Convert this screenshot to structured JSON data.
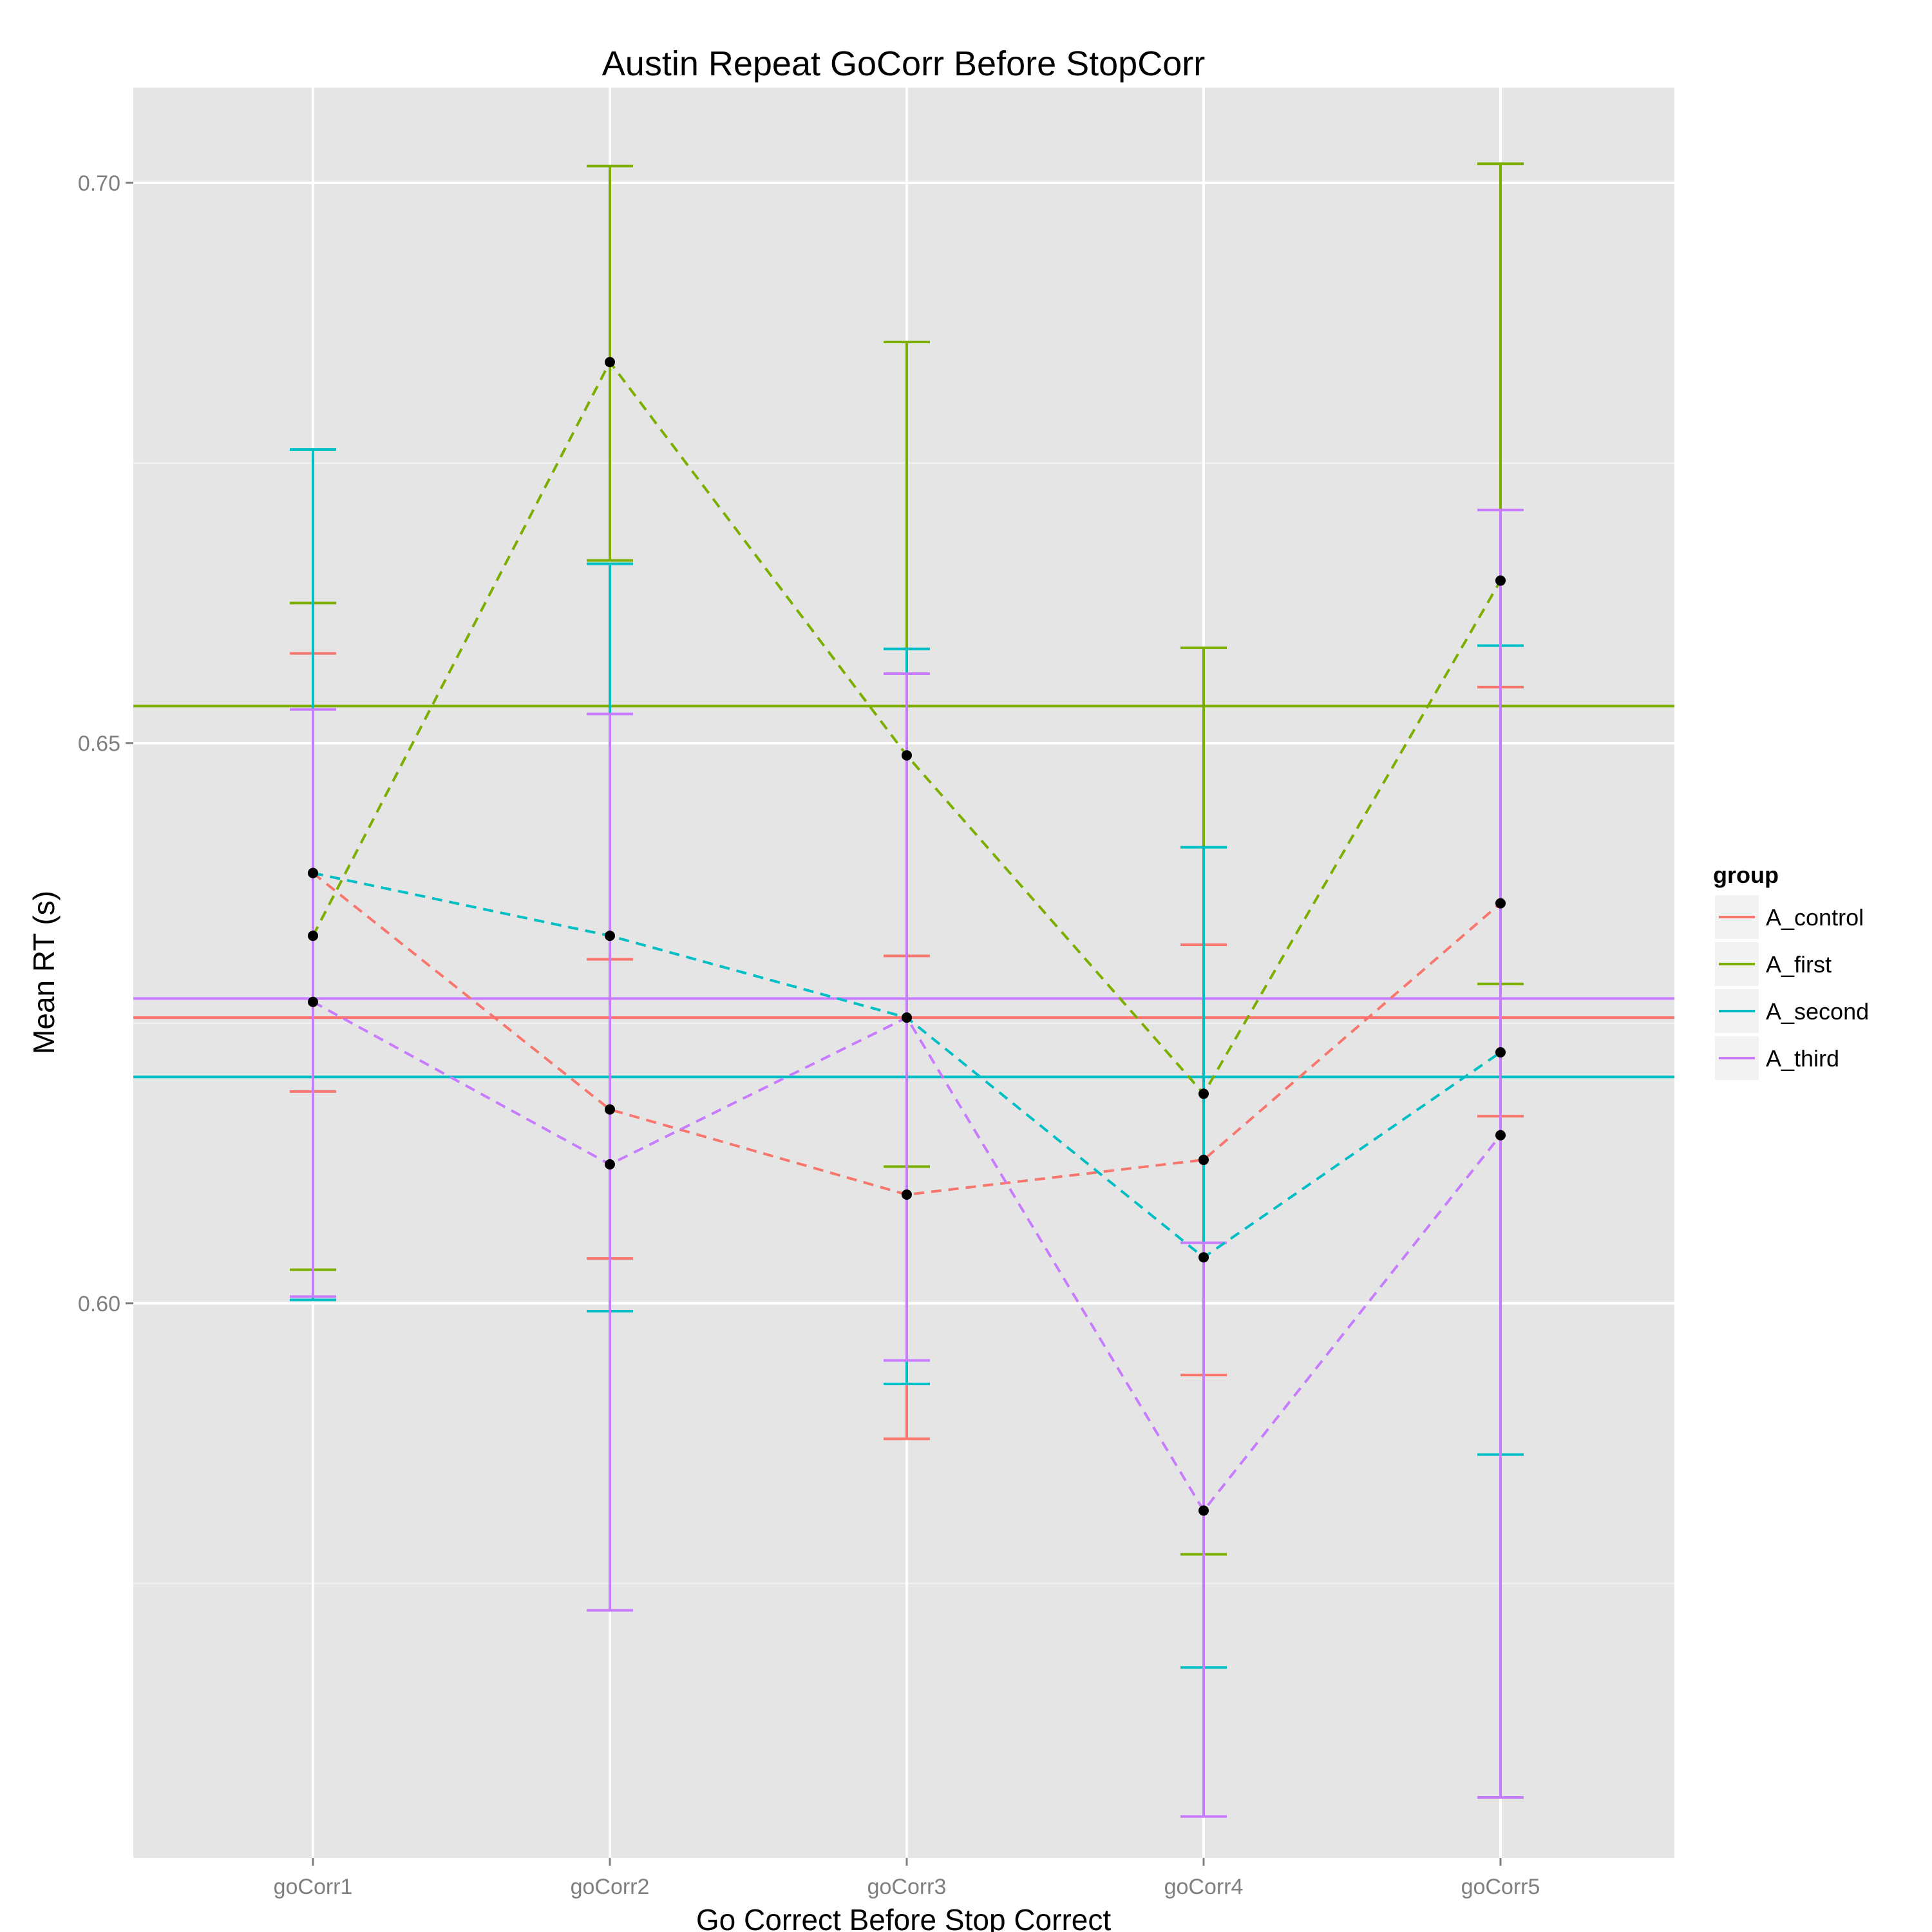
{
  "chart_data": {
    "type": "line",
    "title": "Austin Repeat GoCorr Before StopCorr",
    "xlabel": "Go Correct Before Stop Correct",
    "ylabel": "Mean RT (s)",
    "categories": [
      "goCorr1",
      "goCorr2",
      "goCorr3",
      "goCorr4",
      "goCorr5"
    ],
    "ylim": [
      0.5505,
      0.7085
    ],
    "yticks": [
      0.6,
      0.65,
      0.7
    ],
    "ytick_labels": [
      "0.60",
      "0.65",
      "0.70"
    ],
    "grid": true,
    "legend": {
      "title": "group",
      "position": "right"
    },
    "series": [
      {
        "name": "A_control",
        "color": "#F8766D",
        "values": [
          0.6384,
          0.6173,
          0.6097,
          0.6128,
          0.6357
        ],
        "err_low": [
          0.6189,
          0.604,
          0.5879,
          0.5936,
          0.6167
        ],
        "err_high": [
          0.658,
          0.6307,
          0.631,
          0.632,
          0.655
        ],
        "reference": 0.6255
      },
      {
        "name": "A_first",
        "color": "#7CAE00",
        "values": [
          0.6328,
          0.684,
          0.6489,
          0.6187,
          0.6645
        ],
        "err_low": [
          0.603,
          0.6663,
          0.6122,
          0.5776,
          0.6285
        ],
        "err_high": [
          0.6625,
          0.7015,
          0.6858,
          0.6585,
          0.7017
        ],
        "reference": 0.6533
      },
      {
        "name": "A_second",
        "color": "#00BFC4",
        "values": [
          0.6384,
          0.6328,
          0.6255,
          0.6041,
          0.6224
        ],
        "err_low": [
          0.6003,
          0.5993,
          0.5928,
          0.5675,
          0.5865
        ],
        "err_high": [
          0.6762,
          0.666,
          0.6584,
          0.6407,
          0.6587
        ],
        "reference": 0.6202
      },
      {
        "name": "A_third",
        "color": "#C77CFF",
        "values": [
          0.6269,
          0.6124,
          0.6255,
          0.5815,
          0.615
        ],
        "err_low": [
          0.6006,
          0.5726,
          0.5949,
          0.5542,
          0.5559
        ],
        "err_high": [
          0.653,
          0.6526,
          0.6562,
          0.6054,
          0.6708
        ],
        "reference": 0.6272
      }
    ]
  }
}
